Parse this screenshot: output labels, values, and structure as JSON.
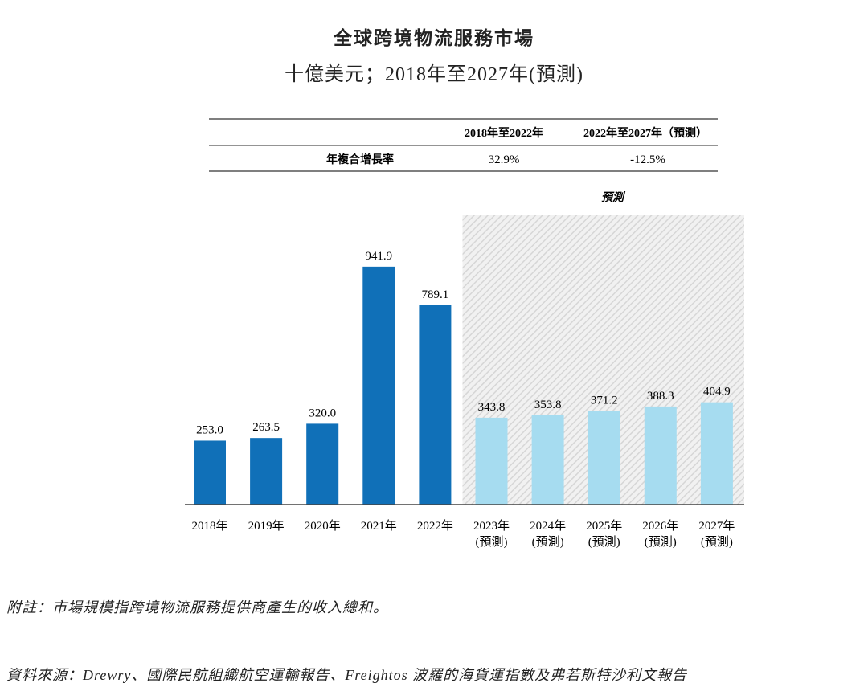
{
  "chart_data": {
    "type": "bar",
    "title": "全球跨境物流服務市場",
    "subtitle": "十億美元；2018年至2027年(預測)",
    "categories": [
      "2018年",
      "2019年",
      "2020年",
      "2021年",
      "2022年",
      "2023年",
      "2024年",
      "2025年",
      "2026年",
      "2027年"
    ],
    "category_sublabels": [
      "",
      "",
      "",
      "",
      "",
      "(預測)",
      "(預測)",
      "(預測)",
      "(預測)",
      "(預測)"
    ],
    "values": [
      253.0,
      263.5,
      320.0,
      941.9,
      789.1,
      343.8,
      353.8,
      371.2,
      388.3,
      404.9
    ],
    "value_labels": [
      "253.0",
      "263.5",
      "320.0",
      "941.9",
      "789.1",
      "343.8",
      "353.8",
      "371.2",
      "388.3",
      "404.9"
    ],
    "forecast_flags": [
      false,
      false,
      false,
      false,
      false,
      true,
      true,
      true,
      true,
      true
    ],
    "forecast_label": "預測",
    "ylim": [
      0,
      1000
    ],
    "grid": false,
    "colors": {
      "actual": "#1070b8",
      "forecast": "#a6dcf0",
      "forecast_bg": "#e4e4e4"
    },
    "cagr_table": {
      "headers": [
        "",
        "2018年至2022年",
        "2022年至2027年（預測）"
      ],
      "rows": [
        [
          "年複合增長率",
          "32.9%",
          "-12.5%"
        ]
      ]
    }
  },
  "notes": {
    "footnote": "附註：市場規模指跨境物流服務提供商產生的收入總和。",
    "source": "資料來源：Drewry、國際民航組織航空運輸報告、Freightos 波羅的海貨運指數及弗若斯特沙利文報告"
  }
}
